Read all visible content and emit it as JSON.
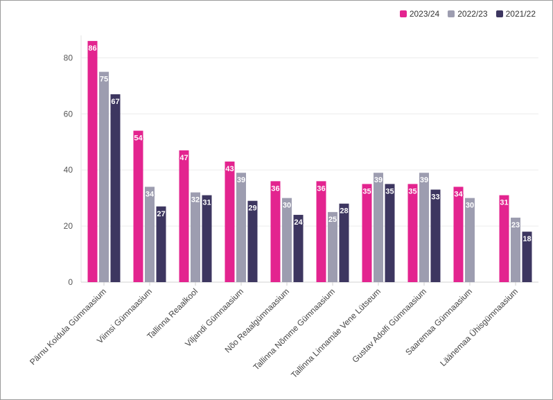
{
  "chart_data": {
    "type": "bar",
    "title": "",
    "xlabel": "",
    "ylabel": "",
    "ylim": [
      0,
      88
    ],
    "yticks": [
      0,
      20,
      40,
      60,
      80
    ],
    "grid": true,
    "legend_position": "top-right",
    "categories": [
      "Pärnu Koidula Gümnaasium",
      "Viimsi Gümnaasium",
      "Tallinna Reaalkool",
      "Viljandi Gümnaasium",
      "Nõo Reaalgümnaasium",
      "Tallinna Nõmme Gümnaasium",
      "Tallinna Linnamäe Vene Lütseum",
      "Gustav Adolfi Gümnaasium",
      "Saaremaa Gümnaasium",
      "Läänemaa Ühisgümnaasium"
    ],
    "series": [
      {
        "name": "2023/24",
        "color": "#e3248f",
        "values": [
          86,
          54,
          47,
          43,
          36,
          36,
          35,
          35,
          34,
          31
        ]
      },
      {
        "name": "2022/23",
        "color": "#9d9db0",
        "values": [
          75,
          34,
          32,
          39,
          30,
          25,
          39,
          39,
          30,
          23
        ]
      },
      {
        "name": "2021/22",
        "color": "#3d3660",
        "values": [
          67,
          27,
          31,
          29,
          24,
          28,
          35,
          33,
          null,
          18
        ]
      }
    ]
  }
}
